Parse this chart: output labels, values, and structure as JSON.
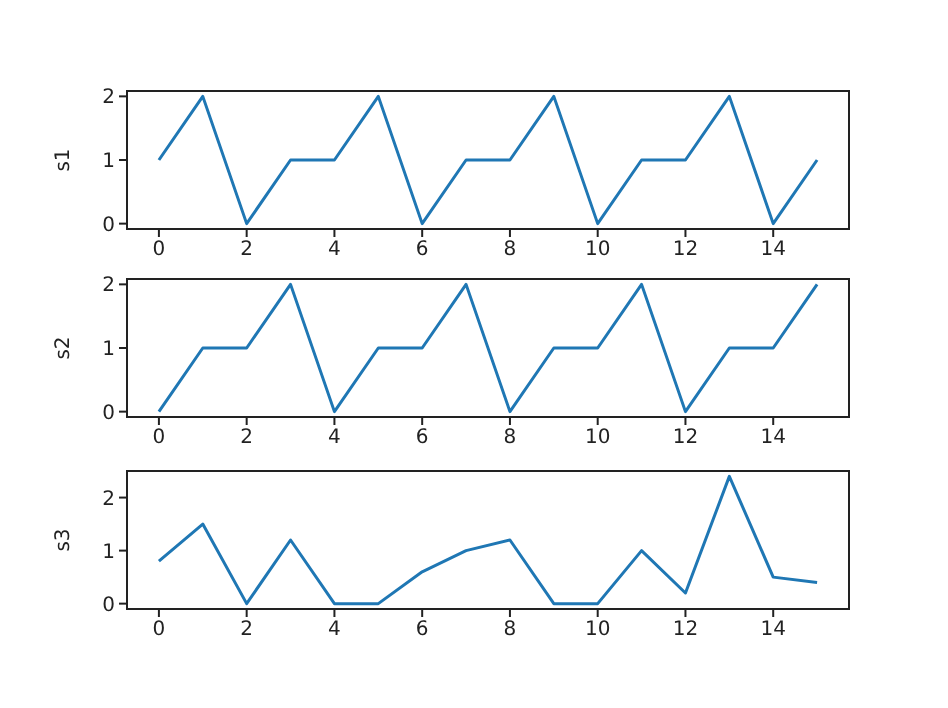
{
  "chart_data": [
    {
      "type": "line",
      "ylabel": "s1",
      "x": [
        0,
        1,
        2,
        3,
        4,
        5,
        6,
        7,
        8,
        9,
        10,
        11,
        12,
        13,
        14,
        15
      ],
      "xlim": [
        -0.75,
        15.75
      ],
      "xticks": [
        0,
        2,
        4,
        6,
        8,
        10,
        12,
        14
      ],
      "ylim": [
        -0.1,
        2.1
      ],
      "yticks": [
        0,
        1,
        2
      ],
      "series": [
        {
          "color": "#1f77b4",
          "values": [
            1,
            2,
            0,
            1,
            1,
            2,
            0,
            1,
            1,
            2,
            0,
            1,
            1,
            2,
            0,
            1
          ]
        }
      ]
    },
    {
      "type": "line",
      "ylabel": "s2",
      "x": [
        0,
        1,
        2,
        3,
        4,
        5,
        6,
        7,
        8,
        9,
        10,
        11,
        12,
        13,
        14,
        15
      ],
      "xlim": [
        -0.75,
        15.75
      ],
      "xticks": [
        0,
        2,
        4,
        6,
        8,
        10,
        12,
        14
      ],
      "ylim": [
        -0.1,
        2.1
      ],
      "yticks": [
        0,
        1,
        2
      ],
      "series": [
        {
          "color": "#1f77b4",
          "values": [
            0,
            1,
            1,
            2,
            0,
            1,
            1,
            2,
            0,
            1,
            1,
            2,
            0,
            1,
            1,
            2
          ]
        }
      ]
    },
    {
      "type": "line",
      "ylabel": "s3",
      "x": [
        0,
        1,
        2,
        3,
        4,
        5,
        6,
        7,
        8,
        9,
        10,
        11,
        12,
        13,
        14,
        15
      ],
      "xlim": [
        -0.75,
        15.75
      ],
      "xticks": [
        0,
        2,
        4,
        6,
        8,
        10,
        12,
        14
      ],
      "ylim": [
        -0.12,
        2.52
      ],
      "yticks": [
        0,
        1,
        2
      ],
      "series": [
        {
          "color": "#1f77b4",
          "values": [
            0.8,
            1.5,
            0,
            1.2,
            0,
            0,
            0.6,
            1.0,
            1.2,
            0,
            0,
            1.0,
            0.2,
            2.4,
            0.5,
            0.4
          ]
        }
      ]
    }
  ]
}
